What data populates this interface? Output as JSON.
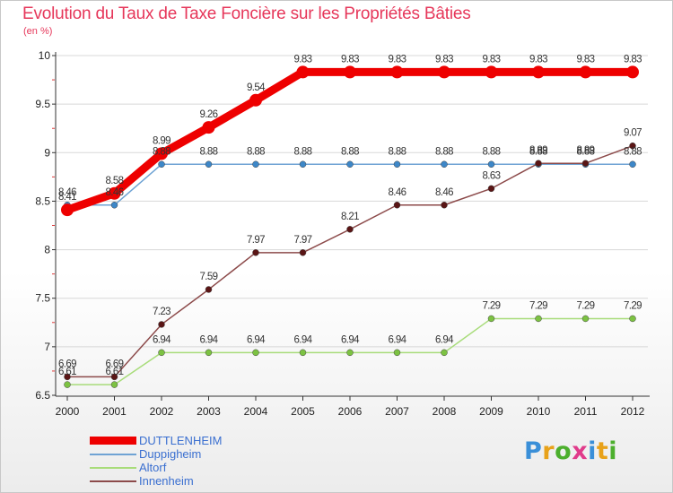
{
  "header": {
    "title": "Evolution du Taux de Taxe Foncière sur les Propriétés Bâties",
    "subtitle": "(en %)"
  },
  "logo": {
    "text": "Proxiti",
    "letter_colors": [
      "#3a8fd8",
      "#e8a21a",
      "#4caf2d",
      "#e03b8b",
      "#3a8fd8",
      "#e8a21a",
      "#4caf2d"
    ]
  },
  "colors": {
    "title": "#e6375a",
    "axis": "#333333",
    "grid": "#d8d8d8"
  },
  "chart_data": {
    "type": "line",
    "title": "Evolution du Taux de Taxe Foncière sur les Propriétés Bâties",
    "ylabel": "(en %)",
    "xlabel": "",
    "x": [
      "2000",
      "2001",
      "2002",
      "2003",
      "2004",
      "2005",
      "2006",
      "2007",
      "2008",
      "2009",
      "2010",
      "2011",
      "2012"
    ],
    "ylim": [
      6.5,
      10
    ],
    "yticks": [
      6.5,
      7,
      7.5,
      8,
      8.5,
      9,
      9.5,
      10
    ],
    "ytick_labels": [
      "6.5",
      "7",
      "7.5",
      "8",
      "8.5",
      "9",
      "9.5",
      "10"
    ],
    "grid": true,
    "legend_position": "bottom-left",
    "series": [
      {
        "name": "DUTTLENHEIM",
        "color": "#ee0000",
        "marker_color": "#ee0000",
        "thick": true,
        "values": [
          8.41,
          8.58,
          8.99,
          9.26,
          9.54,
          9.83,
          9.83,
          9.83,
          9.83,
          9.83,
          9.83,
          9.83,
          9.83
        ],
        "labels": [
          "8.41",
          "8.58",
          "8.99",
          "9.26",
          "9.54",
          "9.83",
          "9.83",
          "9.83",
          "9.83",
          "9.83",
          "9.83",
          "9.83",
          "9.83"
        ]
      },
      {
        "name": "Duppigheim",
        "color": "#6fa3d4",
        "marker_color": "#3d87c8",
        "thick": false,
        "values": [
          8.46,
          8.46,
          8.88,
          8.88,
          8.88,
          8.88,
          8.88,
          8.88,
          8.88,
          8.88,
          8.88,
          8.88,
          8.88
        ],
        "labels": [
          "8.46",
          "8.46",
          "8.88",
          "8.88",
          "8.88",
          "8.88",
          "8.88",
          "8.88",
          "8.88",
          "8.88",
          "8.88",
          "8.88",
          "8.88"
        ]
      },
      {
        "name": "Altorf",
        "color": "#a8dc7a",
        "marker_color": "#7cc242",
        "thick": false,
        "values": [
          6.61,
          6.61,
          6.94,
          6.94,
          6.94,
          6.94,
          6.94,
          6.94,
          6.94,
          7.29,
          7.29,
          7.29,
          7.29
        ],
        "labels": [
          "6.61",
          "6.61",
          "6.94",
          "6.94",
          "6.94",
          "6.94",
          "6.94",
          "6.94",
          "6.94",
          "7.29",
          "7.29",
          "7.29",
          "7.29"
        ]
      },
      {
        "name": "Innenheim",
        "color": "#8c4a4a",
        "marker_color": "#5a1515",
        "thick": false,
        "values": [
          6.69,
          6.69,
          7.23,
          7.59,
          7.97,
          7.97,
          8.21,
          8.46,
          8.46,
          8.63,
          8.89,
          8.89,
          9.07
        ],
        "labels": [
          "6.69",
          "6.69",
          "7.23",
          "7.59",
          "7.97",
          "7.97",
          "8.21",
          "8.46",
          "8.46",
          "8.63",
          "8.89",
          "8.89",
          "9.07"
        ]
      }
    ]
  }
}
